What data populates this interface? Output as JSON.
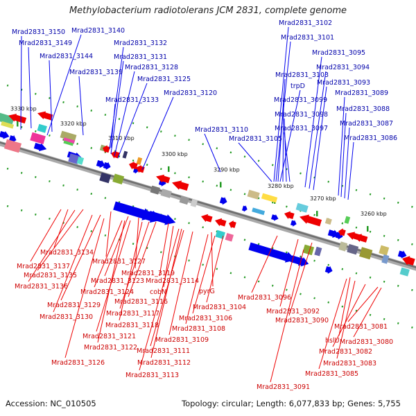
{
  "title": "Methylobacterium radiotolerans JCM 2831, complete genome",
  "footer": {
    "accession": "Accession: NC_010505",
    "topology": "Topology: circular; Length: 6,077,833 bp; Genes: 5,755"
  },
  "colors": {
    "forward": "#0000ee",
    "reverse": "#ee0000",
    "backbone": "#888888",
    "tick": "#229922"
  },
  "scale_labels": [
    "3330 kbp",
    "3320 kbp",
    "3310 kbp",
    "3300 kbp",
    "3290 kbp",
    "3280 kbp",
    "3270 kbp",
    "3260 kbp"
  ],
  "forward_genes": [
    "Mrad2831_3150",
    "Mrad2831_3149",
    "Mrad2831_3140",
    "Mrad2831_3144",
    "Mrad2831_3139",
    "Mrad2831_3132",
    "Mrad2831_3131",
    "Mrad2831_3128",
    "Mrad2831_3125",
    "Mrad2831_3133",
    "Mrad2831_3120",
    "Mrad2831_3110",
    "Mrad2831_3105",
    "Mrad2831_3102",
    "Mrad2831_3101",
    "Mrad2831_3103",
    "trpD",
    "Mrad2831_3099",
    "Mrad2831_3098",
    "Mrad2831_3097",
    "Mrad2831_3095",
    "Mrad2831_3094",
    "Mrad2831_3093",
    "Mrad2831_3089",
    "Mrad2831_3088",
    "Mrad2831_3087",
    "Mrad2831_3086"
  ],
  "reverse_genes": [
    "Mrad2831_3134",
    "Mrad2831_3137",
    "Mrad2831_3127",
    "Mrad2831_3135",
    "Mrad2831_3136",
    "Mrad2831_3119",
    "Mrad2831_3123",
    "Mrad2831_3114",
    "Mrad2831_3124",
    "cobN",
    "Mrad2831_3129",
    "Mrad2831_3116",
    "Mrad2831_3117",
    "Mrad2831_3130",
    "Mrad2831_3118",
    "Mrad2831_3121",
    "Mrad2831_3122",
    "Mrad2831_3126",
    "pyrG",
    "Mrad2831_3104",
    "Mrad2831_3106",
    "Mrad2831_3108",
    "Mrad2831_3109",
    "Mrad2831_3111",
    "Mrad2831_3112",
    "Mrad2831_3113",
    "Mrad2831_3096",
    "Mrad2831_3092",
    "Mrad2831_3090",
    "hslU",
    "Mrad2831_3081",
    "Mrad2831_3080",
    "Mrad2831_3082",
    "Mrad2831_3083",
    "Mrad2831_3085",
    "Mrad2831_3091"
  ]
}
